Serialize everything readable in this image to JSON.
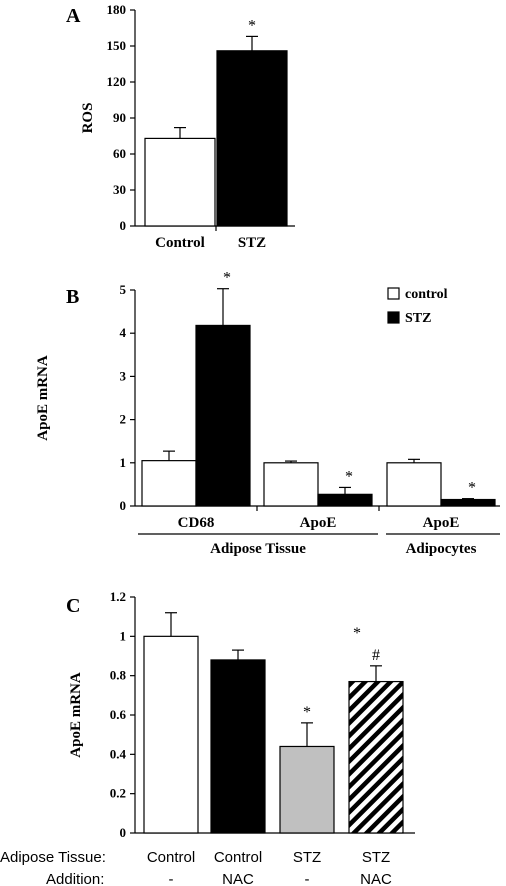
{
  "chart_data": [
    {
      "panel": "A",
      "type": "bar",
      "ylabel": "ROS",
      "ylim": [
        0,
        180
      ],
      "yticks": [
        0,
        30,
        60,
        90,
        120,
        150,
        180
      ],
      "categories": [
        "Control",
        "STZ"
      ],
      "values": [
        73,
        146
      ],
      "errors": [
        9,
        12
      ],
      "fills": [
        "#ffffff",
        "#000000"
      ],
      "annotations": [
        "",
        "*"
      ]
    },
    {
      "panel": "B",
      "type": "bar",
      "ylabel": "ApoE mRNA",
      "ylim": [
        0,
        5
      ],
      "yticks": [
        0,
        1,
        2,
        3,
        4,
        5
      ],
      "legend_position": "top-right",
      "categories": [
        "CD68",
        "ApoE",
        "ApoE"
      ],
      "groups": [
        {
          "label": "Adipose Tissue",
          "categories": [
            0,
            1
          ]
        },
        {
          "label": "Adipocytes",
          "categories": [
            2
          ]
        }
      ],
      "series": [
        {
          "name": "control",
          "color": "#ffffff",
          "values": [
            1.05,
            1.0,
            1.0
          ],
          "errors": [
            0.22,
            0.04,
            0.08
          ],
          "annotations": [
            "",
            "",
            ""
          ]
        },
        {
          "name": "STZ",
          "color": "#000000",
          "values": [
            4.18,
            0.27,
            0.15
          ],
          "errors": [
            0.85,
            0.16,
            0.02
          ],
          "annotations": [
            "*",
            "*",
            "*"
          ]
        }
      ]
    },
    {
      "panel": "C",
      "type": "bar",
      "ylabel": "ApoE mRNA",
      "ylim": [
        0,
        1.2
      ],
      "yticks": [
        "0",
        "0.2",
        "0.4",
        "0.6",
        "0.8",
        "1",
        "1.2"
      ],
      "row_labels": [
        "Adipose Tissue:",
        "Addition:"
      ],
      "categories": [
        {
          "tissue": "Control",
          "addition": "-"
        },
        {
          "tissue": "Control",
          "addition": "NAC"
        },
        {
          "tissue": "STZ",
          "addition": "-"
        },
        {
          "tissue": "STZ",
          "addition": "NAC"
        }
      ],
      "values": [
        1.0,
        0.88,
        0.44,
        0.77
      ],
      "errors": [
        0.12,
        0.05,
        0.12,
        0.08
      ],
      "fills": [
        "#ffffff",
        "#000000",
        "#c0c0c0",
        "hatch"
      ],
      "annotations": [
        "",
        "",
        "*",
        "#"
      ],
      "floating_annotation": "*"
    }
  ]
}
